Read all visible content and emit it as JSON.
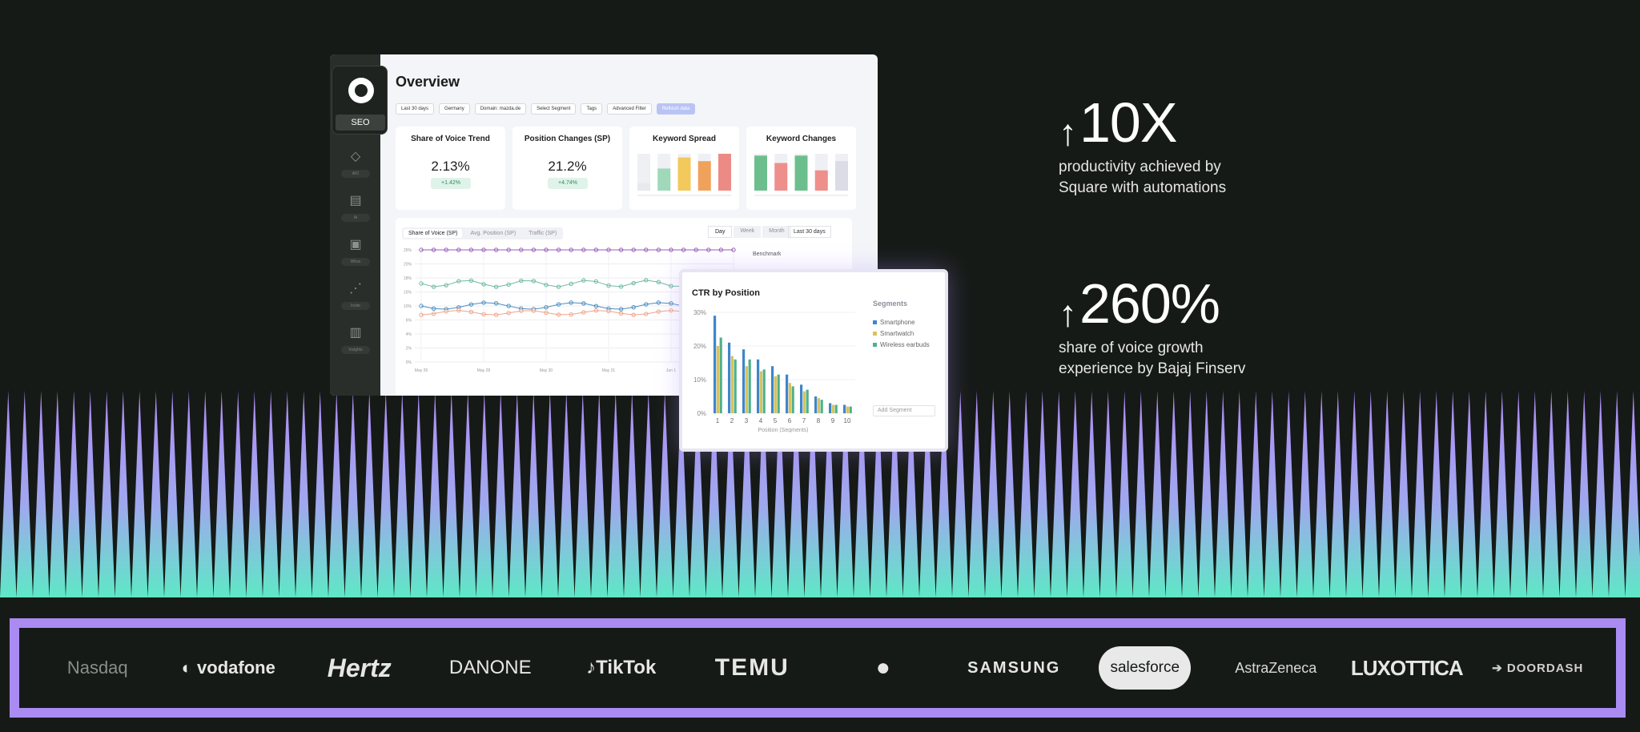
{
  "dashboard": {
    "brand_label": "SEO",
    "nav": [
      {
        "icon": "diamond-icon",
        "label": "AIO"
      },
      {
        "icon": "document-search-icon",
        "label": "Ai"
      },
      {
        "icon": "portrait-icon",
        "label": "Whos"
      },
      {
        "icon": "nodes-icon",
        "label": "Insite"
      },
      {
        "icon": "bar-chart-icon",
        "label": "Insights"
      }
    ],
    "title": "Overview",
    "filters": [
      "Last 30 days",
      "Germany",
      "Domain: mazda.de",
      "Select Segment",
      "Tags",
      "Advanced Filter",
      "Refresh data"
    ],
    "kpis": [
      {
        "title": "Share of Voice Trend",
        "value": "2.13%",
        "delta": "+1.42%"
      },
      {
        "title": "Position Changes (SP)",
        "value": "21.2%",
        "delta": "+4.74%"
      },
      {
        "title": "Keyword Spread"
      },
      {
        "title": "Keyword Changes"
      }
    ],
    "keyword_spread": {
      "values": [
        0.2,
        0.6,
        0.9,
        0.8,
        1.0
      ],
      "colors": [
        "#e8e9ee",
        "#9fd9b9",
        "#f3c95c",
        "#f0a25a",
        "#ec8b86"
      ]
    },
    "keyword_changes": {
      "values": [
        0.95,
        0.75,
        0.95,
        0.55,
        0.8
      ],
      "colors": [
        "#6cbf8c",
        "#ee8f8b",
        "#6cbf8c",
        "#ee8f8b",
        "#dcdce6"
      ]
    },
    "trend_tabs": [
      "Share of Voice (SP)",
      "Avg. Position (SP)",
      "Traffic (SP)"
    ],
    "periods": [
      "Day",
      "Week",
      "Month"
    ],
    "date_range": "Last 30 days",
    "benchmark_label": "Benchmark",
    "trend_yticks": [
      "25%",
      "20%",
      "18%",
      "15%",
      "10%",
      "6%",
      "4%",
      "2%",
      "0%"
    ],
    "trend_xticks": [
      "May 26",
      "May 28",
      "May 30",
      "May 31",
      "Jun 1",
      "Jun"
    ]
  },
  "ctr_popup": {
    "title": "CTR by Position",
    "segments_title": "Segments",
    "segments": [
      {
        "name": "Smartphone",
        "color": "#3f86c9"
      },
      {
        "name": "Smartwatch",
        "color": "#d9c25d"
      },
      {
        "name": "Wireless earbuds",
        "color": "#4fb08a"
      }
    ],
    "add_segment": "Add Segment"
  },
  "chart_data": {
    "type": "bar",
    "title": "CTR by Position",
    "xlabel": "Position (Segments)",
    "ylabel": "",
    "categories": [
      "1",
      "2",
      "3",
      "4",
      "5",
      "6",
      "7",
      "8",
      "9",
      "10"
    ],
    "ylim": [
      0,
      30
    ],
    "yticks": [
      "30%",
      "20%",
      "10%",
      "0%"
    ],
    "series": [
      {
        "name": "Smartphone",
        "values": [
          29,
          21,
          19,
          16,
          14,
          11.5,
          8.5,
          5,
          3,
          2.5
        ]
      },
      {
        "name": "Smartwatch",
        "values": [
          20,
          17,
          14,
          12.5,
          11,
          9,
          6.5,
          4.5,
          2.5,
          2
        ]
      },
      {
        "name": "Wireless earbuds",
        "values": [
          22.5,
          16,
          16,
          13,
          11.5,
          8,
          7,
          4,
          2.5,
          2
        ]
      }
    ]
  },
  "stats": [
    {
      "arrow": "↑",
      "value": "10X",
      "desc": "productivity achieved by Square with automations"
    },
    {
      "arrow": "↑",
      "value": "260%",
      "desc": "share of voice growth experience by Bajaj Finserv"
    }
  ],
  "logos": [
    "Nasdaq",
    "vodafone",
    "Hertz",
    "DANONE",
    "TikTok",
    "TEMU",
    "",
    "SAMSUNG",
    "salesforce",
    "AstraZeneca",
    "LUXOTTICA",
    "DOORDASH"
  ],
  "colors": {
    "spike_top": "#b08cf5",
    "spike_bottom": "#5ee8c6",
    "band_border": "#a98bf2",
    "background": "#161a17"
  }
}
